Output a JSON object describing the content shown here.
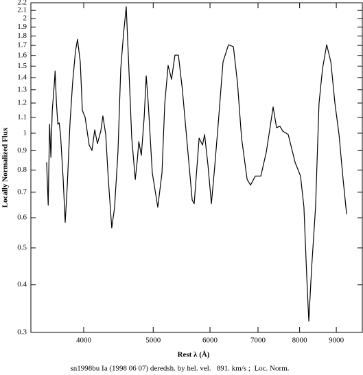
{
  "chart_data": {
    "type": "line",
    "xlabel": "Rest λ (Å)",
    "ylabel": "Locally Normalized Flux",
    "caption": "sn1998bu Ia (1998 06 07) deredsh. by hel. vel.   891. km/s ;  Loc. Norm.",
    "xscale": "log",
    "yscale": "log",
    "xlim": [
      3376,
      9784
    ],
    "ylim": [
      0.3,
      2.2
    ],
    "xticks": [
      4000,
      5000,
      6000,
      7000,
      8000,
      9000
    ],
    "yticks": [
      0.3,
      0.4,
      0.5,
      0.6,
      0.7,
      0.8,
      0.9,
      1,
      1.1,
      1.2,
      1.3,
      1.4,
      1.5,
      1.6,
      1.7,
      1.8,
      1.9,
      2,
      2.1,
      2.2
    ],
    "color": "#000000",
    "x": [
      3551,
      3569,
      3585,
      3600,
      3616,
      3641,
      3649,
      3665,
      3681,
      3697,
      3713,
      3745,
      3769,
      3794,
      3827,
      3860,
      3895,
      3921,
      3956,
      3983,
      4018,
      4071,
      4107,
      4144,
      4180,
      4226,
      4254,
      4293,
      4329,
      4377,
      4417,
      4465,
      4505,
      4545,
      4585,
      4616,
      4667,
      4720,
      4753,
      4774,
      4813,
      4857,
      4889,
      4921,
      4985,
      5074,
      5143,
      5189,
      5245,
      5303,
      5361,
      5421,
      5491,
      5567,
      5667,
      5703,
      5794,
      5857,
      5897,
      5962,
      6027,
      6093,
      6160,
      6256,
      6367,
      6468,
      6553,
      6640,
      6760,
      6834,
      6940,
      7064,
      7189,
      7268,
      7348,
      7429,
      7510,
      7578,
      7713,
      7884,
      8024,
      8112,
      8185,
      8240,
      8312,
      8420,
      8514,
      8610,
      8727,
      8844,
      8961,
      9079,
      9199,
      9303
    ],
    "values": [
      0.839,
      0.647,
      1.056,
      0.864,
      1.148,
      1.357,
      1.457,
      1.197,
      1.056,
      1.065,
      0.992,
      0.756,
      0.583,
      0.725,
      1.056,
      1.357,
      1.637,
      1.765,
      1.538,
      1.148,
      1.101,
      0.931,
      0.901,
      1.021,
      0.939,
      1.013,
      1.11,
      0.992,
      0.756,
      0.564,
      0.639,
      0.893,
      1.475,
      1.818,
      2.148,
      1.603,
      0.971,
      0.756,
      0.857,
      0.951,
      0.875,
      1.101,
      1.414,
      1.197,
      0.788,
      0.639,
      0.788,
      1.197,
      1.506,
      1.385,
      1.603,
      1.603,
      1.301,
      0.971,
      0.667,
      0.653,
      0.971,
      0.931,
      0.992,
      0.822,
      0.653,
      0.822,
      1.056,
      1.538,
      1.707,
      1.686,
      1.357,
      0.971,
      0.756,
      0.731,
      0.772,
      0.772,
      0.893,
      1.021,
      1.172,
      1.034,
      1.043,
      1.013,
      0.992,
      0.839,
      0.772,
      0.639,
      0.421,
      0.321,
      0.439,
      0.639,
      1.197,
      1.475,
      1.707,
      1.538,
      1.197,
      0.992,
      0.756,
      0.613
    ]
  }
}
